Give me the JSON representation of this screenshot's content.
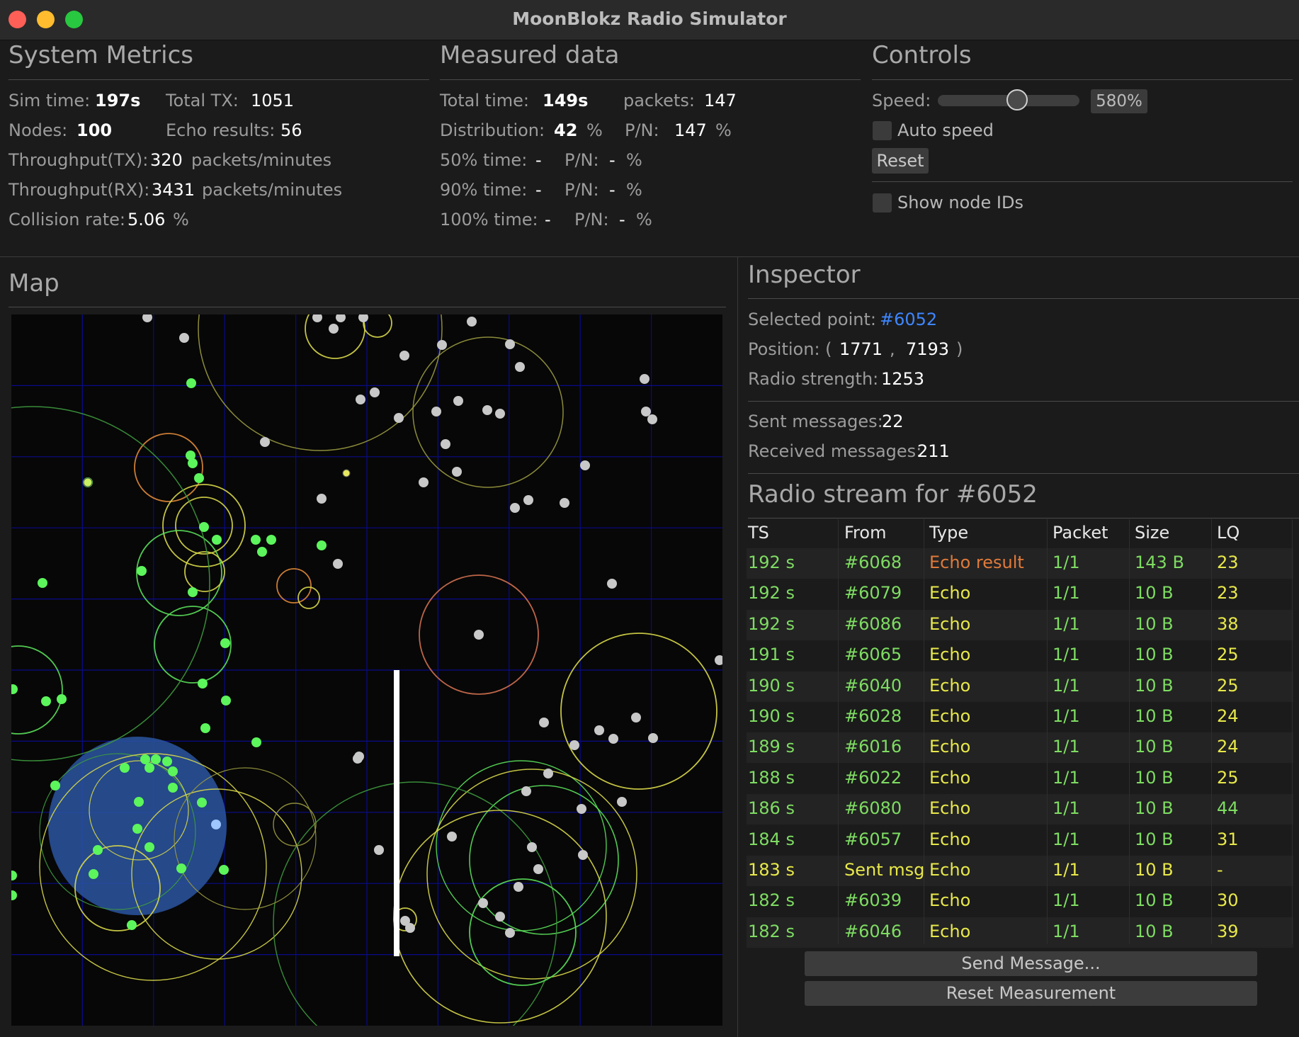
{
  "window": {
    "title": "MoonBlokz Radio Simulator"
  },
  "system_metrics": {
    "title": "System Metrics",
    "sim_time_label": "Sim time:",
    "sim_time": "197s",
    "total_tx_label": "Total TX:",
    "total_tx": "1051",
    "nodes_label": "Nodes:",
    "nodes": "100",
    "echo_results_label": "Echo results:",
    "echo_results": "56",
    "throughput_tx_label": "Throughput(TX):",
    "throughput_tx": "320",
    "throughput_tx_unit": "packets/minutes",
    "throughput_rx_label": "Throughput(RX):",
    "throughput_rx": "3431",
    "throughput_rx_unit": "packets/minutes",
    "collision_rate_label": "Collision rate:",
    "collision_rate": "5.06",
    "collision_rate_unit": "%"
  },
  "measured_data": {
    "title": "Measured data",
    "total_time_label": "Total time:",
    "total_time": "149s",
    "packets_label": "packets:",
    "packets": "147",
    "distribution_label": "Distribution:",
    "distribution": "42",
    "distribution_unit": "%",
    "pn_label": "P/N:",
    "pn_value": "147",
    "pn_unit": "%",
    "t50_label": "50% time:",
    "t50": "-",
    "t50_pn_label": "P/N:",
    "t50_pn": "-",
    "t50_pn_unit": "%",
    "t90_label": "90% time:",
    "t90": "-",
    "t90_pn_label": "P/N:",
    "t90_pn": "-",
    "t90_pn_unit": "%",
    "t100_label": "100% time:",
    "t100": "-",
    "t100_pn_label": "P/N:",
    "t100_pn": "-",
    "t100_pn_unit": "%"
  },
  "controls": {
    "title": "Controls",
    "speed_label": "Speed:",
    "speed_value": "580%",
    "speed_fraction": 0.56,
    "auto_speed_label": "Auto speed",
    "reset_label": "Reset",
    "show_node_ids_label": "Show node IDs"
  },
  "map": {
    "title": "Map",
    "colors": {
      "active": "#5cf55c",
      "idle": "#c8c8c8",
      "selected": "#9ec6ff",
      "grid": "#0a0a8a",
      "selection_halo": "#2a55a0"
    }
  },
  "inspector": {
    "title": "Inspector",
    "selected_point_label": "Selected point:",
    "selected_point": "#6052",
    "position_label": "Position: (",
    "position_x": "1771",
    "position_sep": ",",
    "position_y": "7193",
    "position_end": ")",
    "radio_strength_label": "Radio strength:",
    "radio_strength": "1253",
    "sent_messages_label": "Sent messages:",
    "sent_messages": "22",
    "received_messages_label": "Received messages:",
    "received_messages": "211"
  },
  "radio_stream": {
    "title": "Radio stream for #6052",
    "headers": [
      "TS",
      "From",
      "Type",
      "Packet",
      "Size",
      "LQ"
    ],
    "rows": [
      {
        "ts": "192 s",
        "from": "#6068",
        "type": "Echo result",
        "packet": "1/1",
        "size": "143 B",
        "lq": "23"
      },
      {
        "ts": "192 s",
        "from": "#6079",
        "type": "Echo",
        "packet": "1/1",
        "size": "10 B",
        "lq": "23"
      },
      {
        "ts": "192 s",
        "from": "#6086",
        "type": "Echo",
        "packet": "1/1",
        "size": "10 B",
        "lq": "38"
      },
      {
        "ts": "191 s",
        "from": "#6065",
        "type": "Echo",
        "packet": "1/1",
        "size": "10 B",
        "lq": "25"
      },
      {
        "ts": "190 s",
        "from": "#6040",
        "type": "Echo",
        "packet": "1/1",
        "size": "10 B",
        "lq": "25"
      },
      {
        "ts": "190 s",
        "from": "#6028",
        "type": "Echo",
        "packet": "1/1",
        "size": "10 B",
        "lq": "24"
      },
      {
        "ts": "189 s",
        "from": "#6016",
        "type": "Echo",
        "packet": "1/1",
        "size": "10 B",
        "lq": "24"
      },
      {
        "ts": "188 s",
        "from": "#6022",
        "type": "Echo",
        "packet": "1/1",
        "size": "10 B",
        "lq": "25"
      },
      {
        "ts": "186 s",
        "from": "#6080",
        "type": "Echo",
        "packet": "1/1",
        "size": "10 B",
        "lq": "44"
      },
      {
        "ts": "184 s",
        "from": "#6057",
        "type": "Echo",
        "packet": "1/1",
        "size": "10 B",
        "lq": "31"
      },
      {
        "ts": "183 s",
        "from": "Sent msg",
        "type": "Echo",
        "packet": "1/1",
        "size": "10 B",
        "lq": "-"
      },
      {
        "ts": "182 s",
        "from": "#6039",
        "type": "Echo",
        "packet": "1/1",
        "size": "10 B",
        "lq": "30"
      },
      {
        "ts": "182 s",
        "from": "#6046",
        "type": "Echo",
        "packet": "1/1",
        "size": "10 B",
        "lq": "39"
      }
    ],
    "colors": {
      "green": "#7edc62",
      "yellow": "#e8e84a",
      "orange": "#e07a3a"
    }
  },
  "actions": {
    "send_message_label": "Send Message...",
    "reset_measurement_label": "Reset Measurement"
  }
}
